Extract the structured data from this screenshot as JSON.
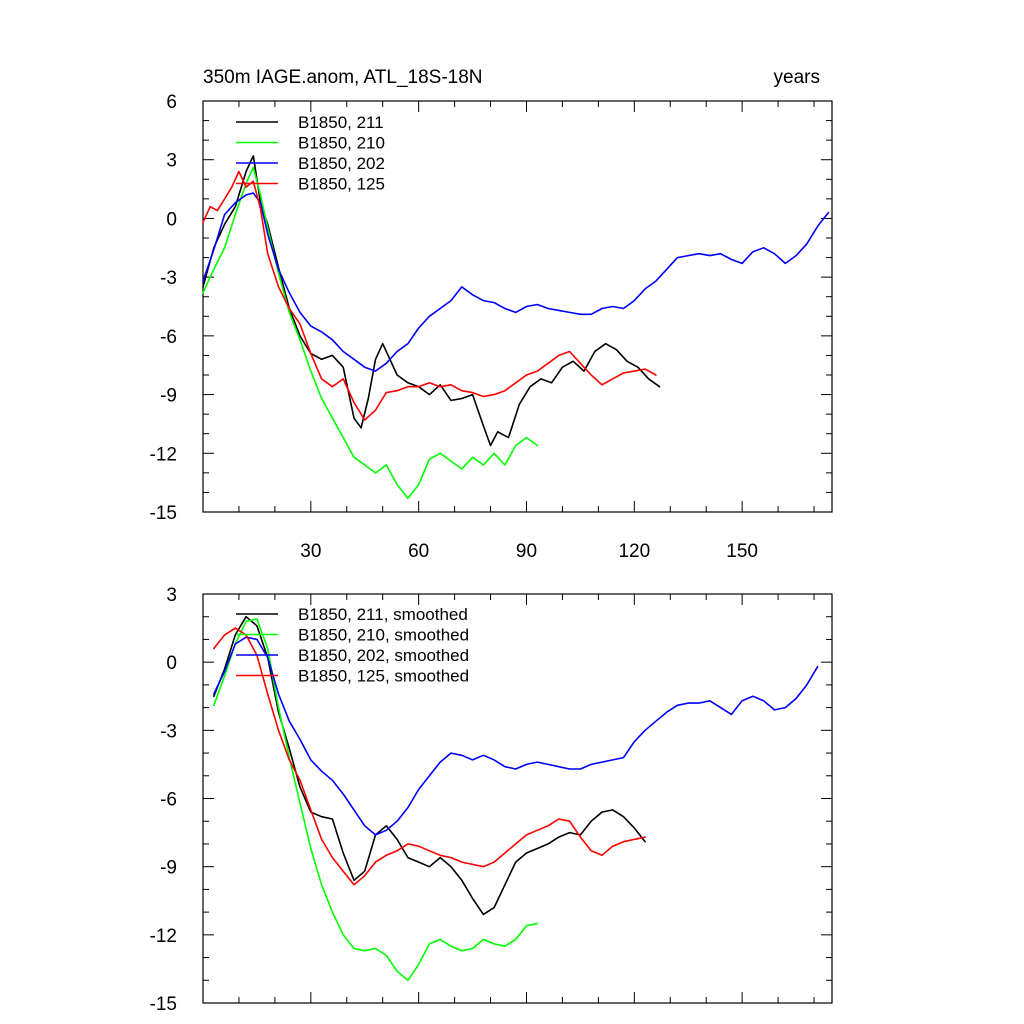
{
  "chart_data": [
    {
      "type": "line",
      "title": "350m IAGE.anom, ATL_18S-18N",
      "units_label": "years",
      "xlim": [
        0,
        175
      ],
      "ylim": [
        -15,
        6
      ],
      "x_ticks": [
        30,
        60,
        90,
        120,
        150
      ],
      "x_tick_labels": [
        "30",
        "60",
        "90",
        "120",
        "150"
      ],
      "y_ticks": [
        6,
        3,
        0,
        -3,
        -6,
        -9,
        -12,
        -15
      ],
      "y_tick_labels": [
        "6",
        "3",
        "0",
        "-3",
        "-6",
        "-9",
        "-12",
        "-15"
      ],
      "legend_position": "top-left",
      "series": [
        {
          "name": "B1850, 211",
          "color": "#000000",
          "x": [
            0,
            3,
            6,
            9,
            12,
            14,
            16,
            18,
            21,
            24,
            27,
            30,
            33,
            36,
            39,
            42,
            44,
            46,
            48,
            50,
            52,
            54,
            57,
            60,
            63,
            66,
            69,
            72,
            75,
            78,
            80,
            82,
            85,
            88,
            91,
            94,
            97,
            100,
            103,
            106,
            109,
            112,
            115,
            118,
            121,
            124,
            127
          ],
          "y": [
            -3.5,
            -1.5,
            -0.3,
            0.6,
            2.4,
            3.2,
            0.8,
            -0.3,
            -2.5,
            -4.6,
            -6.0,
            -6.9,
            -7.2,
            -7.0,
            -7.6,
            -10.2,
            -10.7,
            -9.2,
            -7.2,
            -6.4,
            -7.2,
            -8.0,
            -8.4,
            -8.6,
            -9.0,
            -8.5,
            -9.3,
            -9.2,
            -9.0,
            -10.6,
            -11.6,
            -10.9,
            -11.2,
            -9.5,
            -8.6,
            -8.2,
            -8.4,
            -7.6,
            -7.3,
            -7.8,
            -6.8,
            -6.4,
            -6.7,
            -7.3,
            -7.6,
            -8.2,
            -8.6
          ]
        },
        {
          "name": "B1850, 210",
          "color": "#00ff00",
          "x": [
            0,
            3,
            6,
            9,
            12,
            14,
            16,
            18,
            21,
            24,
            27,
            30,
            33,
            36,
            39,
            42,
            45,
            48,
            51,
            54,
            57,
            60,
            63,
            66,
            69,
            72,
            75,
            78,
            81,
            84,
            87,
            90,
            93
          ],
          "y": [
            -3.8,
            -2.6,
            -1.5,
            0.2,
            1.8,
            2.6,
            1.2,
            -0.5,
            -2.8,
            -4.8,
            -6.2,
            -7.8,
            -9.2,
            -10.2,
            -11.2,
            -12.2,
            -12.6,
            -13.0,
            -12.6,
            -13.6,
            -14.3,
            -13.6,
            -12.3,
            -12.0,
            -12.4,
            -12.8,
            -12.2,
            -12.6,
            -12.0,
            -12.6,
            -11.6,
            -11.2,
            -11.6
          ]
        },
        {
          "name": "B1850, 202",
          "color": "#0000ff",
          "x": [
            0,
            3,
            6,
            9,
            12,
            14,
            16,
            18,
            21,
            24,
            27,
            30,
            33,
            36,
            39,
            42,
            45,
            48,
            51,
            54,
            57,
            60,
            63,
            66,
            69,
            72,
            75,
            78,
            81,
            84,
            87,
            90,
            93,
            96,
            99,
            102,
            105,
            108,
            111,
            114,
            117,
            120,
            123,
            126,
            129,
            132,
            135,
            138,
            141,
            144,
            147,
            150,
            153,
            156,
            159,
            162,
            165,
            168,
            171,
            174
          ],
          "y": [
            -3.2,
            -1.6,
            0.2,
            0.8,
            1.2,
            1.3,
            0.8,
            -0.8,
            -2.6,
            -3.8,
            -4.8,
            -5.5,
            -5.8,
            -6.2,
            -6.8,
            -7.2,
            -7.6,
            -7.8,
            -7.4,
            -6.8,
            -6.4,
            -5.6,
            -5.0,
            -4.6,
            -4.2,
            -3.5,
            -3.9,
            -4.2,
            -4.3,
            -4.6,
            -4.8,
            -4.5,
            -4.4,
            -4.6,
            -4.7,
            -4.8,
            -4.9,
            -4.9,
            -4.6,
            -4.5,
            -4.6,
            -4.2,
            -3.6,
            -3.2,
            -2.6,
            -2.0,
            -1.9,
            -1.8,
            -1.9,
            -1.8,
            -2.1,
            -2.3,
            -1.7,
            -1.5,
            -1.8,
            -2.3,
            -1.9,
            -1.3,
            -0.4,
            0.3
          ]
        },
        {
          "name": "B1850, 125",
          "color": "#ff0000",
          "x": [
            0,
            2,
            4,
            6,
            8,
            10,
            12,
            14,
            16,
            18,
            21,
            24,
            27,
            30,
            33,
            36,
            39,
            42,
            45,
            48,
            51,
            54,
            57,
            60,
            63,
            66,
            69,
            72,
            75,
            78,
            81,
            84,
            87,
            90,
            93,
            96,
            99,
            102,
            105,
            108,
            111,
            114,
            117,
            120,
            123,
            126
          ],
          "y": [
            -0.2,
            0.6,
            0.4,
            1.0,
            1.6,
            2.4,
            1.6,
            1.9,
            0.5,
            -1.8,
            -3.5,
            -4.6,
            -5.4,
            -6.9,
            -8.2,
            -8.6,
            -8.2,
            -9.4,
            -10.3,
            -9.8,
            -8.9,
            -8.8,
            -8.6,
            -8.6,
            -8.4,
            -8.6,
            -8.5,
            -8.8,
            -8.9,
            -9.1,
            -9.0,
            -8.8,
            -8.4,
            -8.0,
            -7.8,
            -7.4,
            -7.0,
            -6.8,
            -7.4,
            -8.0,
            -8.5,
            -8.2,
            -7.9,
            -7.8,
            -7.7,
            -8.0
          ]
        }
      ]
    },
    {
      "type": "line",
      "title": "",
      "xlim": [
        0,
        175
      ],
      "ylim": [
        -15,
        3
      ],
      "y_ticks": [
        3,
        0,
        -3,
        -6,
        -9,
        -12,
        -15
      ],
      "y_tick_labels": [
        "3",
        "0",
        "-3",
        "-6",
        "-9",
        "-12",
        "-15"
      ],
      "legend_position": "top-left",
      "series": [
        {
          "name": "B1850, 211, smoothed",
          "color": "#000000",
          "x": [
            3,
            6,
            9,
            12,
            15,
            18,
            21,
            24,
            27,
            30,
            33,
            36,
            39,
            42,
            45,
            48,
            51,
            54,
            57,
            60,
            63,
            66,
            69,
            72,
            75,
            78,
            81,
            84,
            87,
            90,
            93,
            96,
            99,
            102,
            105,
            108,
            111,
            114,
            117,
            120,
            123
          ],
          "y": [
            -1.5,
            -0.3,
            1.2,
            2.0,
            1.6,
            0.2,
            -2.2,
            -3.8,
            -5.5,
            -6.6,
            -6.8,
            -6.9,
            -8.4,
            -9.6,
            -9.2,
            -7.6,
            -7.2,
            -7.8,
            -8.6,
            -8.8,
            -9.0,
            -8.6,
            -9.0,
            -9.6,
            -10.4,
            -11.1,
            -10.8,
            -9.8,
            -8.8,
            -8.4,
            -8.2,
            -8.0,
            -7.7,
            -7.5,
            -7.6,
            -7.0,
            -6.6,
            -6.5,
            -6.8,
            -7.3,
            -7.9
          ]
        },
        {
          "name": "B1850, 210, smoothed",
          "color": "#00ff00",
          "x": [
            3,
            6,
            9,
            12,
            15,
            18,
            21,
            24,
            27,
            30,
            33,
            36,
            39,
            42,
            45,
            48,
            51,
            54,
            57,
            60,
            63,
            66,
            69,
            72,
            75,
            78,
            81,
            84,
            87,
            90,
            93
          ],
          "y": [
            -1.9,
            -0.6,
            0.8,
            1.8,
            1.9,
            0.6,
            -2.0,
            -4.2,
            -6.2,
            -8.2,
            -9.8,
            -11.0,
            -12.0,
            -12.6,
            -12.7,
            -12.6,
            -12.9,
            -13.6,
            -14.0,
            -13.3,
            -12.4,
            -12.2,
            -12.5,
            -12.7,
            -12.6,
            -12.2,
            -12.4,
            -12.5,
            -12.2,
            -11.6,
            -11.5
          ]
        },
        {
          "name": "B1850, 202, smoothed",
          "color": "#0000ff",
          "x": [
            3,
            6,
            9,
            12,
            15,
            18,
            21,
            24,
            27,
            30,
            33,
            36,
            39,
            42,
            45,
            48,
            51,
            54,
            57,
            60,
            63,
            66,
            69,
            72,
            75,
            78,
            81,
            84,
            87,
            90,
            93,
            96,
            99,
            102,
            105,
            108,
            111,
            114,
            117,
            120,
            123,
            126,
            129,
            132,
            135,
            138,
            141,
            144,
            147,
            150,
            153,
            156,
            159,
            162,
            165,
            168,
            171
          ],
          "y": [
            -1.4,
            -0.4,
            0.8,
            1.1,
            1.0,
            0.2,
            -1.4,
            -2.6,
            -3.4,
            -4.3,
            -4.8,
            -5.2,
            -5.8,
            -6.5,
            -7.2,
            -7.6,
            -7.4,
            -7.0,
            -6.4,
            -5.6,
            -5.0,
            -4.4,
            -4.0,
            -4.1,
            -4.3,
            -4.1,
            -4.3,
            -4.6,
            -4.7,
            -4.5,
            -4.4,
            -4.5,
            -4.6,
            -4.7,
            -4.7,
            -4.5,
            -4.4,
            -4.3,
            -4.2,
            -3.5,
            -3.0,
            -2.6,
            -2.2,
            -1.9,
            -1.8,
            -1.8,
            -1.7,
            -2.0,
            -2.3,
            -1.7,
            -1.5,
            -1.7,
            -2.1,
            -2.0,
            -1.6,
            -1.0,
            -0.2
          ]
        },
        {
          "name": "B1850, 125, smoothed",
          "color": "#ff0000",
          "x": [
            3,
            6,
            9,
            12,
            15,
            18,
            21,
            24,
            27,
            30,
            33,
            36,
            39,
            42,
            45,
            48,
            51,
            54,
            57,
            60,
            63,
            66,
            69,
            72,
            75,
            78,
            81,
            84,
            87,
            90,
            93,
            96,
            99,
            102,
            105,
            108,
            111,
            114,
            117,
            120,
            123
          ],
          "y": [
            0.6,
            1.2,
            1.5,
            1.2,
            0.3,
            -1.4,
            -3.0,
            -4.3,
            -5.2,
            -6.5,
            -7.8,
            -8.6,
            -9.2,
            -9.8,
            -9.4,
            -8.8,
            -8.5,
            -8.3,
            -8.0,
            -8.1,
            -8.3,
            -8.5,
            -8.6,
            -8.8,
            -8.9,
            -9.0,
            -8.8,
            -8.4,
            -8.0,
            -7.6,
            -7.4,
            -7.2,
            -6.9,
            -7.0,
            -7.7,
            -8.3,
            -8.5,
            -8.1,
            -7.9,
            -7.8,
            -7.7
          ]
        }
      ]
    }
  ]
}
